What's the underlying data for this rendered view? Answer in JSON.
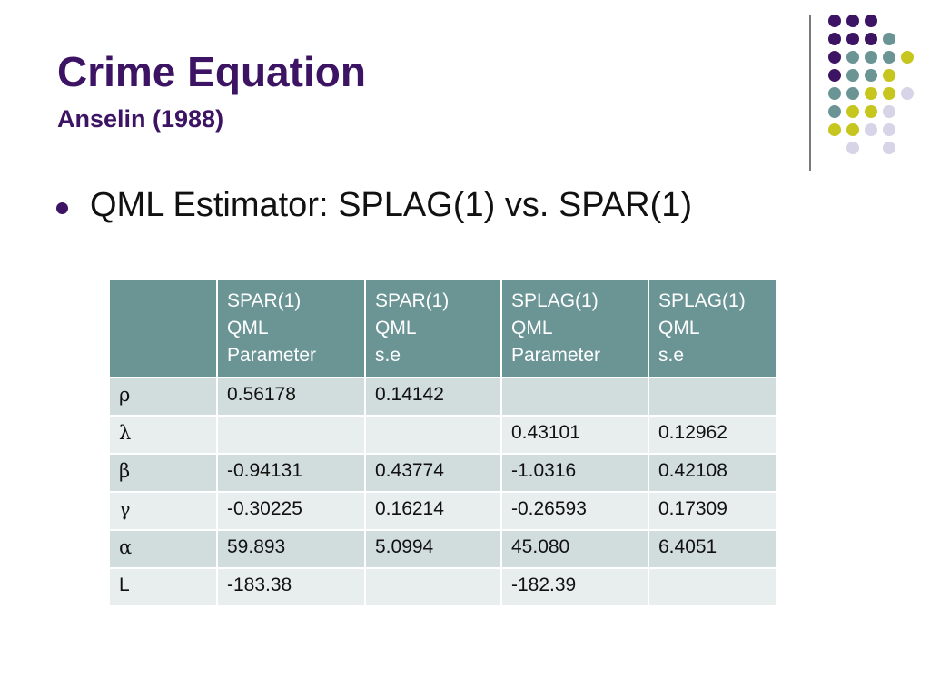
{
  "slide": {
    "title": "Crime Equation",
    "subtitle": "Anselin (1988)",
    "bullet": "QML Estimator: SPLAG(1) vs. SPAR(1)"
  },
  "colors": {
    "purple": "#3d1464",
    "teal": "#6b9494",
    "olive": "#c7c61f",
    "lavender": "#d6d4e6",
    "table_header": "#6b9494"
  },
  "decoration": {
    "dot_pattern": [
      [
        "purple",
        "purple",
        "purple",
        null,
        null
      ],
      [
        "purple",
        "purple",
        "purple",
        "teal",
        null
      ],
      [
        "purple",
        "teal",
        "teal",
        "teal",
        "olive"
      ],
      [
        "purple",
        "teal",
        "teal",
        "olive",
        null
      ],
      [
        "teal",
        "teal",
        "olive",
        "olive",
        "lavender"
      ],
      [
        "teal",
        "olive",
        "olive",
        "lavender",
        null
      ],
      [
        "olive",
        "olive",
        "lavender",
        "lavender",
        null
      ],
      [
        null,
        "lavender",
        null,
        "lavender",
        null
      ]
    ]
  },
  "table": {
    "headers": [
      "",
      "SPAR(1)\nQML\nParameter",
      "SPAR(1)\nQML\ns.e",
      "SPLAG(1)\nQML\nParameter",
      "SPLAG(1)\nQML\ns.e"
    ],
    "rows": [
      [
        "ρ",
        "0.56178",
        "0.14142",
        "",
        ""
      ],
      [
        "λ",
        "",
        "",
        "0.43101",
        "0.12962"
      ],
      [
        "β",
        "-0.94131",
        "0.43774",
        "-1.0316",
        "0.42108"
      ],
      [
        "γ",
        "-0.30225",
        "0.16214",
        "-0.26593",
        "0.17309"
      ],
      [
        "α",
        "59.893",
        "5.0994",
        "45.080",
        "6.4051"
      ],
      [
        "L",
        "-183.38",
        "",
        "-182.39",
        ""
      ]
    ]
  }
}
